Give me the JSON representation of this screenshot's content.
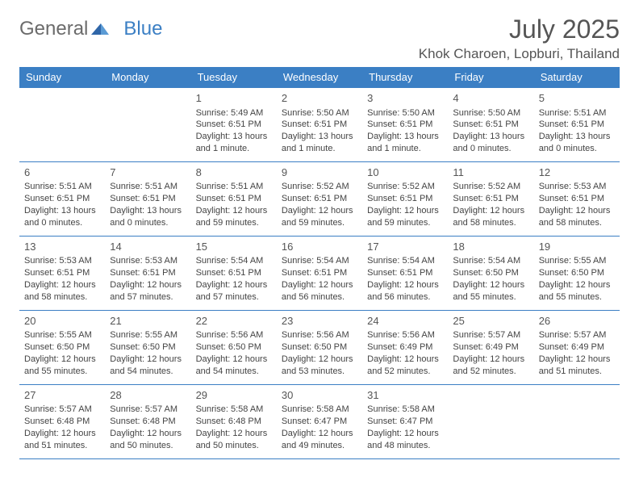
{
  "brand": {
    "general": "General",
    "blue": "Blue"
  },
  "header": {
    "month_title": "July 2025",
    "location": "Khok Charoen, Lopburi, Thailand"
  },
  "colors": {
    "accent": "#3b7fc4",
    "text": "#444444",
    "header_text": "#ffffff",
    "background": "#ffffff"
  },
  "calendar": {
    "day_headers": [
      "Sunday",
      "Monday",
      "Tuesday",
      "Wednesday",
      "Thursday",
      "Friday",
      "Saturday"
    ],
    "weeks": [
      [
        null,
        null,
        {
          "n": "1",
          "sr": "Sunrise: 5:49 AM",
          "ss": "Sunset: 6:51 PM",
          "d1": "Daylight: 13 hours",
          "d2": "and 1 minute."
        },
        {
          "n": "2",
          "sr": "Sunrise: 5:50 AM",
          "ss": "Sunset: 6:51 PM",
          "d1": "Daylight: 13 hours",
          "d2": "and 1 minute."
        },
        {
          "n": "3",
          "sr": "Sunrise: 5:50 AM",
          "ss": "Sunset: 6:51 PM",
          "d1": "Daylight: 13 hours",
          "d2": "and 1 minute."
        },
        {
          "n": "4",
          "sr": "Sunrise: 5:50 AM",
          "ss": "Sunset: 6:51 PM",
          "d1": "Daylight: 13 hours",
          "d2": "and 0 minutes."
        },
        {
          "n": "5",
          "sr": "Sunrise: 5:51 AM",
          "ss": "Sunset: 6:51 PM",
          "d1": "Daylight: 13 hours",
          "d2": "and 0 minutes."
        }
      ],
      [
        {
          "n": "6",
          "sr": "Sunrise: 5:51 AM",
          "ss": "Sunset: 6:51 PM",
          "d1": "Daylight: 13 hours",
          "d2": "and 0 minutes."
        },
        {
          "n": "7",
          "sr": "Sunrise: 5:51 AM",
          "ss": "Sunset: 6:51 PM",
          "d1": "Daylight: 13 hours",
          "d2": "and 0 minutes."
        },
        {
          "n": "8",
          "sr": "Sunrise: 5:51 AM",
          "ss": "Sunset: 6:51 PM",
          "d1": "Daylight: 12 hours",
          "d2": "and 59 minutes."
        },
        {
          "n": "9",
          "sr": "Sunrise: 5:52 AM",
          "ss": "Sunset: 6:51 PM",
          "d1": "Daylight: 12 hours",
          "d2": "and 59 minutes."
        },
        {
          "n": "10",
          "sr": "Sunrise: 5:52 AM",
          "ss": "Sunset: 6:51 PM",
          "d1": "Daylight: 12 hours",
          "d2": "and 59 minutes."
        },
        {
          "n": "11",
          "sr": "Sunrise: 5:52 AM",
          "ss": "Sunset: 6:51 PM",
          "d1": "Daylight: 12 hours",
          "d2": "and 58 minutes."
        },
        {
          "n": "12",
          "sr": "Sunrise: 5:53 AM",
          "ss": "Sunset: 6:51 PM",
          "d1": "Daylight: 12 hours",
          "d2": "and 58 minutes."
        }
      ],
      [
        {
          "n": "13",
          "sr": "Sunrise: 5:53 AM",
          "ss": "Sunset: 6:51 PM",
          "d1": "Daylight: 12 hours",
          "d2": "and 58 minutes."
        },
        {
          "n": "14",
          "sr": "Sunrise: 5:53 AM",
          "ss": "Sunset: 6:51 PM",
          "d1": "Daylight: 12 hours",
          "d2": "and 57 minutes."
        },
        {
          "n": "15",
          "sr": "Sunrise: 5:54 AM",
          "ss": "Sunset: 6:51 PM",
          "d1": "Daylight: 12 hours",
          "d2": "and 57 minutes."
        },
        {
          "n": "16",
          "sr": "Sunrise: 5:54 AM",
          "ss": "Sunset: 6:51 PM",
          "d1": "Daylight: 12 hours",
          "d2": "and 56 minutes."
        },
        {
          "n": "17",
          "sr": "Sunrise: 5:54 AM",
          "ss": "Sunset: 6:51 PM",
          "d1": "Daylight: 12 hours",
          "d2": "and 56 minutes."
        },
        {
          "n": "18",
          "sr": "Sunrise: 5:54 AM",
          "ss": "Sunset: 6:50 PM",
          "d1": "Daylight: 12 hours",
          "d2": "and 55 minutes."
        },
        {
          "n": "19",
          "sr": "Sunrise: 5:55 AM",
          "ss": "Sunset: 6:50 PM",
          "d1": "Daylight: 12 hours",
          "d2": "and 55 minutes."
        }
      ],
      [
        {
          "n": "20",
          "sr": "Sunrise: 5:55 AM",
          "ss": "Sunset: 6:50 PM",
          "d1": "Daylight: 12 hours",
          "d2": "and 55 minutes."
        },
        {
          "n": "21",
          "sr": "Sunrise: 5:55 AM",
          "ss": "Sunset: 6:50 PM",
          "d1": "Daylight: 12 hours",
          "d2": "and 54 minutes."
        },
        {
          "n": "22",
          "sr": "Sunrise: 5:56 AM",
          "ss": "Sunset: 6:50 PM",
          "d1": "Daylight: 12 hours",
          "d2": "and 54 minutes."
        },
        {
          "n": "23",
          "sr": "Sunrise: 5:56 AM",
          "ss": "Sunset: 6:50 PM",
          "d1": "Daylight: 12 hours",
          "d2": "and 53 minutes."
        },
        {
          "n": "24",
          "sr": "Sunrise: 5:56 AM",
          "ss": "Sunset: 6:49 PM",
          "d1": "Daylight: 12 hours",
          "d2": "and 52 minutes."
        },
        {
          "n": "25",
          "sr": "Sunrise: 5:57 AM",
          "ss": "Sunset: 6:49 PM",
          "d1": "Daylight: 12 hours",
          "d2": "and 52 minutes."
        },
        {
          "n": "26",
          "sr": "Sunrise: 5:57 AM",
          "ss": "Sunset: 6:49 PM",
          "d1": "Daylight: 12 hours",
          "d2": "and 51 minutes."
        }
      ],
      [
        {
          "n": "27",
          "sr": "Sunrise: 5:57 AM",
          "ss": "Sunset: 6:48 PM",
          "d1": "Daylight: 12 hours",
          "d2": "and 51 minutes."
        },
        {
          "n": "28",
          "sr": "Sunrise: 5:57 AM",
          "ss": "Sunset: 6:48 PM",
          "d1": "Daylight: 12 hours",
          "d2": "and 50 minutes."
        },
        {
          "n": "29",
          "sr": "Sunrise: 5:58 AM",
          "ss": "Sunset: 6:48 PM",
          "d1": "Daylight: 12 hours",
          "d2": "and 50 minutes."
        },
        {
          "n": "30",
          "sr": "Sunrise: 5:58 AM",
          "ss": "Sunset: 6:47 PM",
          "d1": "Daylight: 12 hours",
          "d2": "and 49 minutes."
        },
        {
          "n": "31",
          "sr": "Sunrise: 5:58 AM",
          "ss": "Sunset: 6:47 PM",
          "d1": "Daylight: 12 hours",
          "d2": "and 48 minutes."
        },
        null,
        null
      ]
    ]
  }
}
